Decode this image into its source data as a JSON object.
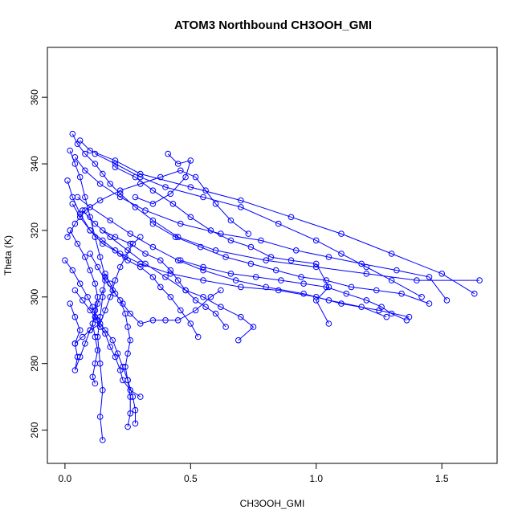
{
  "chart_data": {
    "type": "line",
    "title": "ATOM3 Northbound CH3OOH_GMI",
    "xlabel": "CH3OOH_GMI",
    "ylabel": "Theta (K)",
    "xlim": [
      -0.07,
      1.72
    ],
    "ylim": [
      250,
      375
    ],
    "xticks": [
      0.0,
      0.5,
      1.0,
      1.5
    ],
    "xtick_labels": [
      "0.0",
      "0.5",
      "1.0",
      "1.5"
    ],
    "yticks": [
      260,
      280,
      300,
      320,
      340,
      360
    ],
    "ytick_labels": [
      "260",
      "280",
      "300",
      "320",
      "340",
      "360"
    ],
    "grid": false,
    "color": "#0000ff",
    "marker": "open-circle",
    "series": [
      {
        "values": [
          [
            0.03,
            349
          ],
          [
            0.05,
            346
          ],
          [
            0.08,
            343
          ],
          [
            0.12,
            340
          ],
          [
            0.15,
            337
          ],
          [
            0.18,
            334
          ],
          [
            0.22,
            331
          ],
          [
            0.28,
            327
          ],
          [
            0.35,
            323
          ],
          [
            0.45,
            318
          ],
          [
            0.6,
            314
          ],
          [
            0.8,
            311
          ],
          [
            1.0,
            309
          ],
          [
            1.2,
            307
          ],
          [
            1.4,
            305
          ],
          [
            1.65,
            305
          ]
        ]
      },
      {
        "values": [
          [
            0.02,
            344
          ],
          [
            0.04,
            340
          ],
          [
            0.06,
            336
          ],
          [
            0.08,
            330
          ],
          [
            0.1,
            324
          ],
          [
            0.12,
            318
          ],
          [
            0.14,
            312
          ],
          [
            0.16,
            306
          ],
          [
            0.15,
            300
          ],
          [
            0.14,
            294
          ],
          [
            0.13,
            288
          ],
          [
            0.14,
            280
          ],
          [
            0.15,
            272
          ],
          [
            0.14,
            264
          ],
          [
            0.15,
            257
          ]
        ]
      },
      {
        "values": [
          [
            0.06,
            347
          ],
          [
            0.1,
            344
          ],
          [
            0.2,
            341
          ],
          [
            0.3,
            337
          ],
          [
            0.5,
            333
          ],
          [
            0.7,
            329
          ],
          [
            0.9,
            324
          ],
          [
            1.1,
            319
          ],
          [
            1.3,
            313
          ],
          [
            1.5,
            307
          ],
          [
            1.63,
            301
          ]
        ]
      },
      {
        "values": [
          [
            0.01,
            335
          ],
          [
            0.03,
            330
          ],
          [
            0.06,
            325
          ],
          [
            0.1,
            320
          ],
          [
            0.15,
            316
          ],
          [
            0.22,
            313
          ],
          [
            0.3,
            310
          ],
          [
            0.42,
            307
          ],
          [
            0.55,
            305
          ],
          [
            0.7,
            303
          ],
          [
            0.85,
            302
          ],
          [
            1.0,
            300
          ],
          [
            1.1,
            298
          ],
          [
            1.25,
            296
          ],
          [
            1.37,
            294
          ]
        ]
      },
      {
        "values": [
          [
            0.04,
            342
          ],
          [
            0.08,
            338
          ],
          [
            0.14,
            334
          ],
          [
            0.22,
            330
          ],
          [
            0.32,
            326
          ],
          [
            0.46,
            322
          ],
          [
            0.62,
            319
          ],
          [
            0.78,
            317
          ],
          [
            0.92,
            314
          ],
          [
            1.05,
            312
          ],
          [
            1.18,
            310
          ],
          [
            1.32,
            308
          ],
          [
            1.45,
            306
          ],
          [
            1.52,
            299
          ]
        ]
      },
      {
        "values": [
          [
            0.02,
            320
          ],
          [
            0.05,
            316
          ],
          [
            0.08,
            312
          ],
          [
            0.1,
            308
          ],
          [
            0.12,
            304
          ],
          [
            0.13,
            300
          ],
          [
            0.12,
            296
          ],
          [
            0.11,
            292
          ],
          [
            0.12,
            288
          ],
          [
            0.13,
            284
          ],
          [
            0.12,
            280
          ],
          [
            0.11,
            276
          ],
          [
            0.12,
            274
          ]
        ]
      },
      {
        "values": [
          [
            0.05,
            330
          ],
          [
            0.1,
            327
          ],
          [
            0.18,
            323
          ],
          [
            0.26,
            319
          ],
          [
            0.35,
            315
          ],
          [
            0.45,
            311
          ],
          [
            0.55,
            308
          ],
          [
            0.68,
            305
          ],
          [
            0.8,
            303
          ],
          [
            0.95,
            301
          ],
          [
            1.05,
            299
          ],
          [
            1.18,
            297
          ],
          [
            1.28,
            294
          ]
        ]
      },
      {
        "values": [
          [
            0.12,
            343
          ],
          [
            0.2,
            340
          ],
          [
            0.3,
            336
          ],
          [
            0.4,
            333
          ],
          [
            0.55,
            330
          ],
          [
            0.7,
            327
          ],
          [
            0.85,
            322
          ],
          [
            1.0,
            317
          ],
          [
            1.1,
            313
          ],
          [
            1.2,
            309
          ],
          [
            1.3,
            305
          ],
          [
            1.42,
            300
          ]
        ]
      },
      {
        "values": [
          [
            0.0,
            311
          ],
          [
            0.03,
            308
          ],
          [
            0.06,
            304
          ],
          [
            0.09,
            300
          ],
          [
            0.11,
            297
          ],
          [
            0.13,
            293
          ],
          [
            0.16,
            290
          ],
          [
            0.19,
            287
          ],
          [
            0.21,
            283
          ],
          [
            0.23,
            279
          ],
          [
            0.25,
            275
          ],
          [
            0.27,
            270
          ],
          [
            0.28,
            266
          ],
          [
            0.28,
            262
          ]
        ]
      },
      {
        "values": [
          [
            0.07,
            326
          ],
          [
            0.12,
            322
          ],
          [
            0.18,
            318
          ],
          [
            0.25,
            314
          ],
          [
            0.32,
            310
          ],
          [
            0.4,
            306
          ],
          [
            0.48,
            302
          ],
          [
            0.55,
            300
          ],
          [
            0.62,
            297
          ],
          [
            0.7,
            294
          ],
          [
            0.75,
            291
          ],
          [
            0.69,
            287
          ]
        ]
      },
      {
        "values": [
          [
            0.2,
            339
          ],
          [
            0.28,
            336
          ],
          [
            0.35,
            332
          ],
          [
            0.43,
            328
          ],
          [
            0.5,
            324
          ],
          [
            0.58,
            320
          ],
          [
            0.66,
            317
          ],
          [
            0.74,
            315
          ],
          [
            0.82,
            312
          ],
          [
            0.9,
            311
          ],
          [
            1.0,
            310
          ],
          [
            1.05,
            303
          ],
          [
            1.0,
            299
          ],
          [
            1.05,
            292
          ]
        ]
      },
      {
        "values": [
          [
            0.03,
            328
          ],
          [
            0.06,
            324
          ],
          [
            0.1,
            320
          ],
          [
            0.15,
            317
          ],
          [
            0.2,
            314
          ],
          [
            0.25,
            311
          ],
          [
            0.3,
            309
          ],
          [
            0.35,
            306
          ],
          [
            0.38,
            303
          ],
          [
            0.42,
            300
          ],
          [
            0.46,
            296
          ],
          [
            0.5,
            292
          ],
          [
            0.53,
            288
          ]
        ]
      },
      {
        "values": [
          [
            0.1,
            313
          ],
          [
            0.13,
            309
          ],
          [
            0.16,
            305
          ],
          [
            0.19,
            302
          ],
          [
            0.22,
            299
          ],
          [
            0.24,
            295
          ],
          [
            0.25,
            291
          ],
          [
            0.26,
            287
          ],
          [
            0.25,
            283
          ],
          [
            0.24,
            279
          ],
          [
            0.25,
            275
          ],
          [
            0.26,
            270
          ],
          [
            0.26,
            265
          ],
          [
            0.25,
            261
          ]
        ]
      },
      {
        "values": [
          [
            0.28,
            330
          ],
          [
            0.35,
            328
          ],
          [
            0.42,
            331
          ],
          [
            0.48,
            336
          ],
          [
            0.5,
            341
          ],
          [
            0.45,
            340
          ],
          [
            0.41,
            343
          ]
        ]
      },
      {
        "values": [
          [
            0.16,
            307
          ],
          [
            0.18,
            304
          ],
          [
            0.2,
            301
          ],
          [
            0.23,
            298
          ],
          [
            0.26,
            295
          ],
          [
            0.3,
            292
          ],
          [
            0.35,
            293
          ],
          [
            0.4,
            293
          ],
          [
            0.45,
            293
          ],
          [
            0.52,
            296
          ],
          [
            0.58,
            300
          ],
          [
            0.62,
            302
          ]
        ]
      },
      {
        "values": [
          [
            0.04,
            286
          ],
          [
            0.07,
            288
          ],
          [
            0.1,
            290
          ],
          [
            0.14,
            292
          ],
          [
            0.16,
            296
          ],
          [
            0.18,
            300
          ],
          [
            0.2,
            305
          ],
          [
            0.22,
            309
          ],
          [
            0.24,
            312
          ],
          [
            0.27,
            316
          ],
          [
            0.3,
            318
          ]
        ]
      },
      {
        "values": [
          [
            0.01,
            318
          ],
          [
            0.04,
            322
          ],
          [
            0.08,
            326
          ],
          [
            0.14,
            329
          ],
          [
            0.22,
            332
          ],
          [
            0.3,
            334
          ],
          [
            0.38,
            336
          ],
          [
            0.46,
            338
          ],
          [
            0.52,
            336
          ],
          [
            0.56,
            332
          ],
          [
            0.6,
            328
          ],
          [
            0.66,
            323
          ],
          [
            0.73,
            319
          ]
        ]
      },
      {
        "values": [
          [
            0.04,
            302
          ],
          [
            0.07,
            299
          ],
          [
            0.1,
            296
          ],
          [
            0.12,
            294
          ],
          [
            0.14,
            291
          ],
          [
            0.16,
            289
          ],
          [
            0.18,
            285
          ],
          [
            0.2,
            282
          ],
          [
            0.22,
            278
          ],
          [
            0.23,
            275
          ],
          [
            0.26,
            272
          ],
          [
            0.3,
            270
          ]
        ]
      },
      {
        "values": [
          [
            0.35,
            322
          ],
          [
            0.44,
            318
          ],
          [
            0.54,
            315
          ],
          [
            0.64,
            312
          ],
          [
            0.74,
            310
          ],
          [
            0.84,
            308
          ],
          [
            0.94,
            306
          ],
          [
            1.04,
            305
          ],
          [
            1.14,
            303
          ],
          [
            1.24,
            302
          ],
          [
            1.34,
            301
          ],
          [
            1.45,
            298
          ]
        ]
      },
      {
        "values": [
          [
            0.02,
            298
          ],
          [
            0.04,
            294
          ],
          [
            0.06,
            290
          ],
          [
            0.04,
            286
          ],
          [
            0.05,
            282
          ],
          [
            0.04,
            278
          ],
          [
            0.06,
            282
          ],
          [
            0.08,
            286
          ],
          [
            0.1,
            290
          ],
          [
            0.12,
            294
          ],
          [
            0.13,
            298
          ],
          [
            0.15,
            302
          ]
        ]
      },
      {
        "values": [
          [
            0.46,
            311
          ],
          [
            0.55,
            309
          ],
          [
            0.66,
            307
          ],
          [
            0.76,
            306
          ],
          [
            0.86,
            305
          ],
          [
            0.95,
            304
          ],
          [
            1.04,
            303
          ],
          [
            1.12,
            301
          ],
          [
            1.2,
            299
          ],
          [
            1.26,
            297
          ],
          [
            1.3,
            295
          ],
          [
            1.36,
            293
          ]
        ]
      },
      {
        "values": [
          [
            0.15,
            320
          ],
          [
            0.2,
            318
          ],
          [
            0.26,
            316
          ],
          [
            0.32,
            313
          ],
          [
            0.38,
            311
          ],
          [
            0.42,
            308
          ],
          [
            0.45,
            305
          ],
          [
            0.48,
            302
          ],
          [
            0.52,
            299
          ],
          [
            0.56,
            297
          ],
          [
            0.6,
            295
          ],
          [
            0.64,
            291
          ]
        ]
      }
    ]
  }
}
